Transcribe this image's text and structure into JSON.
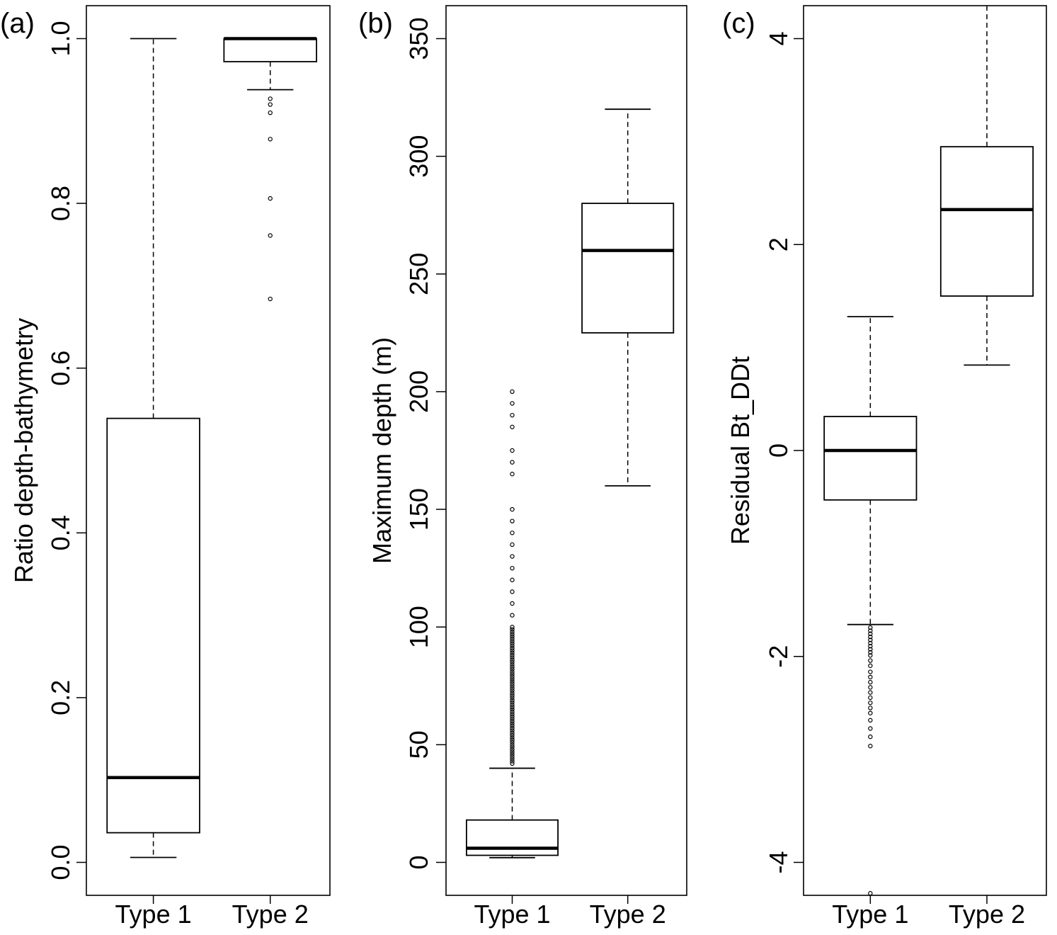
{
  "chart_data": [
    {
      "type": "boxplot",
      "panel_label": "(a)",
      "xlabel": "",
      "ylabel": "Ratio depth-bathymetry",
      "ylim": [
        -0.04,
        1.04
      ],
      "yticks": [
        0.0,
        0.2,
        0.4,
        0.6,
        0.8,
        1.0
      ],
      "ytick_labels": [
        "0.0",
        "0.2",
        "0.4",
        "0.6",
        "0.8",
        "1.0"
      ],
      "categories": [
        "Type 1",
        "Type 2"
      ],
      "boxes": [
        {
          "category": "Type 1",
          "whisker_low": 0.006,
          "q1": 0.036,
          "median": 0.103,
          "q3": 0.539,
          "whisker_high": 1.0,
          "outliers": []
        },
        {
          "category": "Type 2",
          "whisker_low": 0.938,
          "q1": 0.972,
          "median": 1.0,
          "q3": 1.0,
          "whisker_high": 1.0,
          "outliers": [
            0.927,
            0.92,
            0.91,
            0.878,
            0.806,
            0.761,
            0.684
          ]
        }
      ]
    },
    {
      "type": "boxplot",
      "panel_label": "(b)",
      "xlabel": "",
      "ylabel": "Maximum depth (m)",
      "ylim": [
        -14,
        364
      ],
      "yticks": [
        0,
        50,
        100,
        150,
        200,
        250,
        300,
        350
      ],
      "ytick_labels": [
        "0",
        "50",
        "100",
        "150",
        "200",
        "250",
        "300",
        "350"
      ],
      "categories": [
        "Type 1",
        "Type 2"
      ],
      "boxes": [
        {
          "category": "Type 1",
          "whisker_low": 2,
          "q1": 3,
          "median": 6,
          "q3": 18,
          "whisker_high": 40,
          "outliers": [
            42,
            43,
            44,
            45,
            46,
            47,
            48,
            49,
            50,
            51,
            52,
            53,
            54,
            55,
            56,
            57,
            58,
            59,
            60,
            61,
            62,
            63,
            64,
            65,
            66,
            67,
            68,
            69,
            70,
            71,
            72,
            73,
            74,
            75,
            76,
            77,
            78,
            79,
            80,
            81,
            82,
            83,
            84,
            85,
            86,
            87,
            88,
            89,
            90,
            91,
            92,
            93,
            94,
            95,
            96,
            97,
            98,
            99,
            100,
            105,
            110,
            115,
            120,
            125,
            130,
            135,
            140,
            145,
            150,
            165,
            170,
            175,
            185,
            190,
            195,
            200
          ]
        },
        {
          "category": "Type 2",
          "whisker_low": 160,
          "q1": 225,
          "median": 260,
          "q3": 280,
          "whisker_high": 320,
          "outliers": []
        }
      ]
    },
    {
      "type": "boxplot",
      "panel_label": "(c)",
      "xlabel": "",
      "ylabel": "Residual Bt_DDt",
      "ylim": [
        -4.32,
        4.32
      ],
      "yticks": [
        -4,
        -2,
        0,
        2,
        4
      ],
      "ytick_labels": [
        "-4",
        "-2",
        "0",
        "2",
        "4"
      ],
      "categories": [
        "Type 1",
        "Type 2"
      ],
      "boxes": [
        {
          "category": "Type 1",
          "whisker_low": -1.69,
          "q1": -0.48,
          "median": 0.0,
          "q3": 0.33,
          "whisker_high": 1.3,
          "outliers": [
            -1.72,
            -1.75,
            -1.78,
            -1.81,
            -1.84,
            -1.87,
            -1.9,
            -1.93,
            -1.96,
            -1.99,
            -2.04,
            -2.09,
            -2.15,
            -2.2,
            -2.25,
            -2.3,
            -2.35,
            -2.4,
            -2.45,
            -2.5,
            -2.55,
            -2.62,
            -2.7,
            -2.78,
            -2.87,
            -4.3
          ]
        },
        {
          "category": "Type 2",
          "whisker_low": 0.83,
          "q1": 1.5,
          "median": 2.34,
          "q3": 2.95,
          "whisker_high": 4.32,
          "outliers": []
        }
      ]
    }
  ]
}
